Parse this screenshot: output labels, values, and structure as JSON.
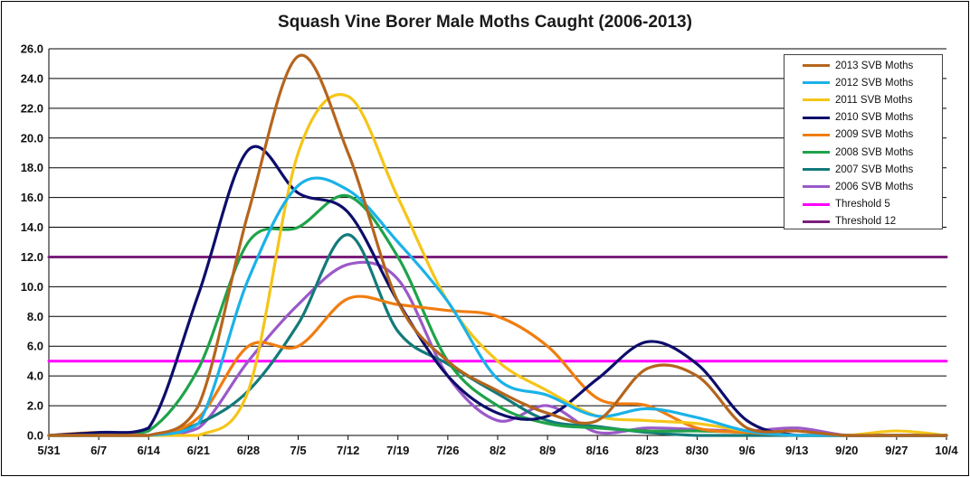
{
  "chart_data": {
    "type": "line",
    "title": "Squash Vine Borer Male Moths Caught (2006-2013)",
    "xlabel": "",
    "ylabel": "",
    "ylim": [
      0,
      26
    ],
    "y_ticks": [
      "0.0",
      "2.0",
      "4.0",
      "6.0",
      "8.0",
      "10.0",
      "12.0",
      "14.0",
      "16.0",
      "18.0",
      "20.0",
      "22.0",
      "24.0",
      "26.0"
    ],
    "categories": [
      "5/31",
      "6/7",
      "6/14",
      "6/21",
      "6/28",
      "7/5",
      "7/12",
      "7/19",
      "7/26",
      "8/2",
      "8/9",
      "8/16",
      "8/23",
      "8/30",
      "9/6",
      "9/13",
      "9/20",
      "9/27",
      "10/4"
    ],
    "grid": "horizontal",
    "legend_position": "top-right",
    "series": [
      {
        "name": "2013 SVB Moths",
        "color": "#b5651d",
        "values": [
          0,
          0,
          0,
          2,
          15,
          25.5,
          19,
          9,
          5,
          3,
          1.5,
          1,
          4.5,
          4,
          0.5,
          0.3,
          0,
          0,
          0
        ]
      },
      {
        "name": "2012 SVB Moths",
        "color": "#1ab2e8",
        "values": [
          0,
          0,
          0,
          0.8,
          10.5,
          16.8,
          16.5,
          13,
          9,
          3.8,
          2.7,
          1.3,
          1.8,
          1.2,
          0.3,
          0,
          0,
          0,
          0
        ]
      },
      {
        "name": "2011 SVB Moths",
        "color": "#f5c518",
        "values": [
          0,
          0,
          0,
          0,
          3,
          19,
          22.8,
          16,
          9,
          5,
          3,
          1.3,
          1,
          0.8,
          0.3,
          0,
          0,
          0.3,
          0
        ]
      },
      {
        "name": "2010 SVB Moths",
        "color": "#0d0d6b",
        "values": [
          0,
          0.2,
          0.5,
          9.5,
          19.2,
          16.3,
          15,
          9,
          4,
          1.5,
          1.3,
          3.8,
          6.3,
          4.8,
          1,
          0,
          0,
          0,
          0
        ]
      },
      {
        "name": "2009 SVB Moths",
        "color": "#f07d10",
        "values": [
          0,
          0.2,
          0,
          1.2,
          6,
          6,
          9.2,
          8.8,
          8.4,
          8,
          6,
          2.5,
          2,
          0.5,
          0.2,
          0,
          0,
          0,
          0
        ]
      },
      {
        "name": "2008 SVB Moths",
        "color": "#1fa34a",
        "values": [
          0,
          0,
          0.3,
          4.5,
          13,
          14,
          16.1,
          12,
          5,
          2,
          0.8,
          0.5,
          0.3,
          0.3,
          0.2,
          0,
          0,
          0,
          0
        ]
      },
      {
        "name": "2007 SVB Moths",
        "color": "#137a7a",
        "values": [
          0,
          0,
          0,
          0.8,
          3,
          7.5,
          13.5,
          7,
          4.8,
          2.8,
          1,
          0.6,
          0.2,
          0,
          0,
          0,
          0,
          0,
          0
        ]
      },
      {
        "name": "2006 SVB Moths",
        "color": "#9b59c9",
        "values": [
          0,
          0,
          0,
          0.5,
          5,
          8.8,
          11.5,
          10.5,
          4,
          1,
          2,
          0.2,
          0.5,
          0.4,
          0.3,
          0.5,
          0,
          0,
          0
        ]
      },
      {
        "name": "Threshold 5",
        "color": "#ff00ff",
        "values": [
          5,
          5,
          5,
          5,
          5,
          5,
          5,
          5,
          5,
          5,
          5,
          5,
          5,
          5,
          5,
          5,
          5,
          5,
          5
        ]
      },
      {
        "name": "Threshold 12",
        "color": "#7b1f7b",
        "values": [
          12,
          12,
          12,
          12,
          12,
          12,
          12,
          12,
          12,
          12,
          12,
          12,
          12,
          12,
          12,
          12,
          12,
          12,
          12
        ]
      }
    ]
  }
}
